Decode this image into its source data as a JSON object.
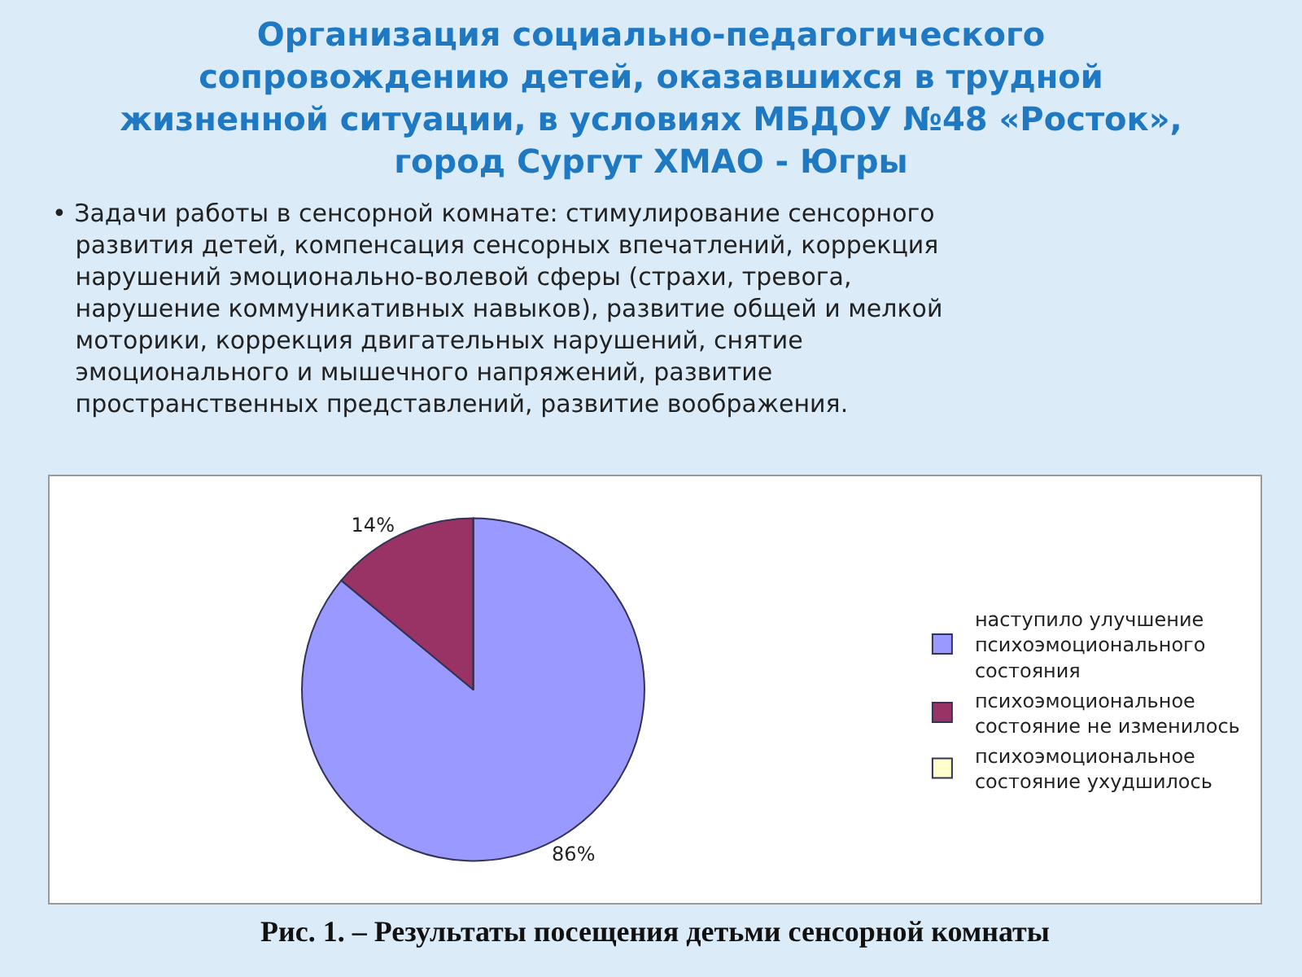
{
  "chart_data": {
    "type": "pie",
    "title": "Организация социально-педагогического сопровождению детей, оказавшихся в трудной жизненной ситуации, в условиях МБДОУ №48 «Росток», город Сургут ХМАО - Югры",
    "annotations": [
      "• Задачи работы в сенсорной комнате: стимулирование сенсорного развития детей, компенсация сенсорных впечатлений, коррекция нарушений эмоционально-волевой сферы (страхи, тревога, нарушение коммуникативных навыков), развитие общей и мелкой моторики, коррекция двигательных нарушений, снятие эмоционального и мышечного напряжений, развитие пространственных представлений, развитие воображения.",
      "Рис. 1. – Результаты посещения детьми сенсорной комнаты"
    ],
    "categories": [
      "наступило улучшение психоэмоционального состояния",
      "психоэмоциональное состояние не изменилось",
      "психоэмоциональное состояние ухудшилось"
    ],
    "values": [
      86,
      14,
      0
    ],
    "colors": [
      "#9999ff",
      "#993366",
      "#ffffcc"
    ],
    "value_labels": [
      "86%",
      "14%",
      null
    ],
    "legend": "right"
  }
}
